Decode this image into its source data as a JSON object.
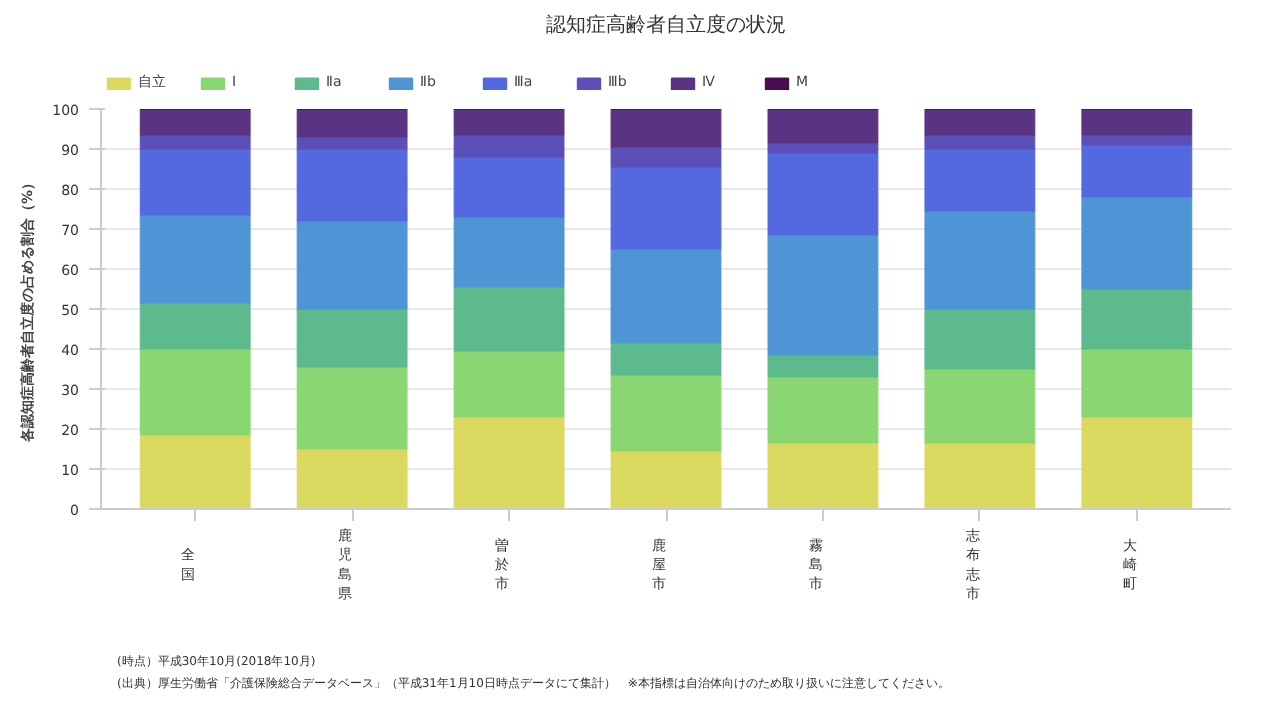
{
  "chart_data": {
    "type": "bar",
    "stacked": true,
    "title": "認知症高齢者自立度の状況",
    "ylabel": "各認知症高齢者自立度の占める割合（%）",
    "categories": [
      "全国",
      "鹿児島県",
      "曽於市",
      "鹿屋市",
      "霧島市",
      "志布志市",
      "大崎町"
    ],
    "series": [
      {
        "name": "自立",
        "color": "#dbd95f",
        "values": [
          18.5,
          15,
          23,
          14.5,
          16.5,
          16.5,
          23
        ]
      },
      {
        "name": "Ⅰ",
        "color": "#8ad672",
        "values": [
          21.5,
          20.5,
          16.5,
          19,
          16.5,
          18.5,
          17
        ]
      },
      {
        "name": "Ⅱa",
        "color": "#5dba8c",
        "values": [
          11.5,
          14.5,
          16,
          8,
          5.5,
          15,
          15
        ]
      },
      {
        "name": "Ⅱb",
        "color": "#4f95d6",
        "values": [
          22,
          22,
          17.5,
          23.5,
          30,
          24.5,
          23
        ]
      },
      {
        "name": "Ⅲa",
        "color": "#5468e0",
        "values": [
          16.5,
          18,
          15,
          20.5,
          20.5,
          15.5,
          13
        ]
      },
      {
        "name": "Ⅲb",
        "color": "#5c50b8",
        "values": [
          3.5,
          3,
          5.5,
          5,
          2.5,
          3.5,
          2.5
        ]
      },
      {
        "name": "Ⅳ",
        "color": "#5a3482",
        "values": [
          6.5,
          7,
          6.5,
          9.5,
          8.5,
          6.5,
          6.5
        ]
      },
      {
        "name": "M",
        "color": "#4a0d4f",
        "values": [
          0,
          0,
          0,
          0,
          0,
          0,
          0
        ]
      }
    ],
    "ylim": [
      0,
      100
    ],
    "yticks": [
      0,
      10,
      20,
      30,
      40,
      50,
      60,
      70,
      80,
      90,
      100
    ],
    "grid": "y",
    "legend": "top left",
    "annotations": [
      "(時点）平成30年10月(2018年10月)",
      "(出典）厚生労働省「介護保険総合データベース」（平成31年1月10日時点データにて集計）　※本指標は自治体向けのため取り扱いに注意してください。"
    ]
  }
}
